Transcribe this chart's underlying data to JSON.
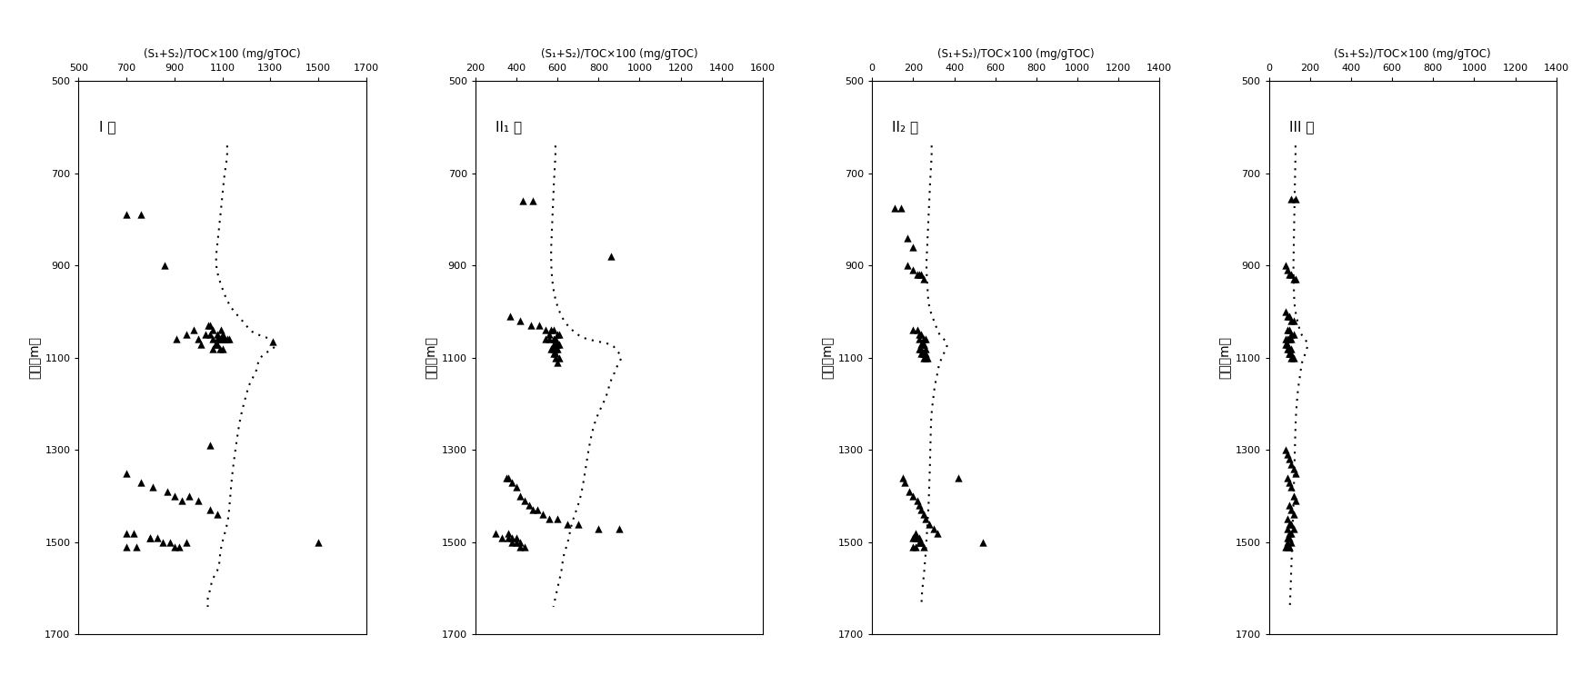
{
  "panels": [
    {
      "label": "I 型",
      "xlabel": "(S₁+S₂)/TOC×100 (mg/gTOC)",
      "xlim": [
        500,
        1700
      ],
      "xticks": [
        500,
        700,
        900,
        1100,
        1300,
        1500,
        1700
      ],
      "ylim": [
        1700,
        500
      ],
      "yticks": [
        500,
        700,
        900,
        1100,
        1300,
        1500,
        1700
      ],
      "scatter_x": [
        700,
        760,
        860,
        910,
        980,
        950,
        1000,
        1010,
        1030,
        1050,
        1060,
        1080,
        1090,
        1100,
        1110,
        1120,
        1130,
        1060,
        1070,
        1080,
        1090,
        1100,
        1060,
        1080,
        1095,
        1100,
        1040,
        1050,
        1310,
        700,
        760,
        810,
        870,
        900,
        930,
        960,
        1000,
        1050,
        1080,
        700,
        730,
        800,
        830,
        850,
        880,
        900,
        920,
        950,
        700,
        740,
        800,
        1050,
        1500
      ],
      "scatter_y": [
        790,
        790,
        900,
        1060,
        1040,
        1050,
        1060,
        1070,
        1050,
        1050,
        1060,
        1060,
        1060,
        1060,
        1060,
        1060,
        1060,
        1080,
        1070,
        1070,
        1080,
        1080,
        1040,
        1050,
        1040,
        1050,
        1030,
        1030,
        1065,
        1350,
        1370,
        1380,
        1390,
        1400,
        1410,
        1400,
        1410,
        1430,
        1440,
        1480,
        1480,
        1490,
        1490,
        1500,
        1500,
        1510,
        1510,
        1500,
        1510,
        1510,
        1490,
        1290,
        1500
      ],
      "curve_x": [
        1120,
        1120,
        1110,
        1100,
        1090,
        1080,
        1075,
        1100,
        1150,
        1200,
        1250,
        1300,
        1310,
        1320,
        1310,
        1280,
        1260,
        1250,
        1240,
        1220,
        1200,
        1180,
        1160,
        1140,
        1130,
        1120,
        1100,
        1090,
        1080,
        1060,
        1050,
        1040,
        1040
      ],
      "curve_y": [
        640,
        660,
        700,
        750,
        800,
        850,
        900,
        950,
        1000,
        1030,
        1050,
        1060,
        1065,
        1070,
        1080,
        1090,
        1100,
        1110,
        1130,
        1150,
        1180,
        1220,
        1280,
        1360,
        1420,
        1460,
        1500,
        1530,
        1560,
        1580,
        1600,
        1620,
        1640
      ]
    },
    {
      "label": "II₁ 型",
      "xlabel": "(S₁+S₂)/TOC×100 (mg/gTOC)",
      "xlim": [
        200,
        1600
      ],
      "xticks": [
        200,
        400,
        600,
        800,
        1000,
        1200,
        1400,
        1600
      ],
      "ylim": [
        1700,
        500
      ],
      "yticks": [
        500,
        700,
        900,
        1100,
        1300,
        1500,
        1700
      ],
      "scatter_x": [
        430,
        480,
        860,
        370,
        420,
        470,
        510,
        540,
        570,
        580,
        600,
        610,
        540,
        560,
        580,
        600,
        610,
        570,
        580,
        590,
        600,
        560,
        580,
        590,
        595,
        580,
        590,
        610,
        590,
        600,
        350,
        360,
        380,
        400,
        420,
        440,
        460,
        480,
        500,
        530,
        560,
        600,
        650,
        700,
        800,
        900,
        300,
        330,
        360,
        380,
        400,
        420,
        360,
        380,
        400,
        420,
        440
      ],
      "scatter_y": [
        760,
        760,
        880,
        1010,
        1020,
        1030,
        1030,
        1040,
        1040,
        1040,
        1050,
        1050,
        1060,
        1060,
        1070,
        1070,
        1070,
        1080,
        1080,
        1080,
        1080,
        1050,
        1060,
        1060,
        1070,
        1090,
        1090,
        1100,
        1100,
        1110,
        1360,
        1360,
        1370,
        1380,
        1400,
        1410,
        1420,
        1430,
        1430,
        1440,
        1450,
        1450,
        1460,
        1460,
        1470,
        1470,
        1480,
        1490,
        1490,
        1500,
        1500,
        1510,
        1480,
        1490,
        1490,
        1500,
        1510
      ],
      "curve_x": [
        590,
        590,
        585,
        580,
        575,
        570,
        570,
        580,
        610,
        650,
        700,
        750,
        800,
        850,
        880,
        900,
        910,
        900,
        880,
        860,
        840,
        800,
        760,
        730,
        700,
        670,
        650,
        630,
        620,
        610,
        600,
        590,
        580
      ],
      "curve_y": [
        640,
        660,
        700,
        750,
        800,
        850,
        900,
        950,
        1000,
        1030,
        1050,
        1060,
        1065,
        1070,
        1080,
        1090,
        1100,
        1110,
        1130,
        1150,
        1180,
        1220,
        1280,
        1360,
        1420,
        1460,
        1500,
        1530,
        1560,
        1580,
        1600,
        1620,
        1640
      ]
    },
    {
      "label": "II₂ 型",
      "xlabel": "(S₁+S₂)/TOC×100 (mg/gTOC)",
      "xlim": [
        0,
        1400
      ],
      "xticks": [
        0,
        200,
        400,
        600,
        800,
        1000,
        1200,
        1400
      ],
      "ylim": [
        1700,
        500
      ],
      "yticks": [
        500,
        700,
        900,
        1100,
        1300,
        1500,
        1700
      ],
      "scatter_x": [
        110,
        140,
        170,
        200,
        170,
        200,
        220,
        230,
        240,
        250,
        200,
        220,
        230,
        240,
        250,
        260,
        230,
        240,
        250,
        250,
        260,
        230,
        240,
        250,
        250,
        240,
        250,
        260,
        250,
        260,
        270,
        150,
        160,
        180,
        200,
        220,
        230,
        240,
        250,
        260,
        280,
        300,
        320,
        200,
        210,
        220,
        230,
        240,
        250,
        200,
        210,
        420,
        210,
        220,
        230,
        240,
        540
      ],
      "scatter_y": [
        775,
        775,
        840,
        860,
        900,
        910,
        920,
        920,
        920,
        930,
        1040,
        1040,
        1050,
        1050,
        1060,
        1060,
        1060,
        1070,
        1070,
        1070,
        1080,
        1080,
        1080,
        1090,
        1090,
        1090,
        1090,
        1090,
        1100,
        1100,
        1100,
        1360,
        1370,
        1390,
        1400,
        1410,
        1420,
        1430,
        1440,
        1450,
        1460,
        1470,
        1480,
        1490,
        1490,
        1490,
        1500,
        1500,
        1510,
        1510,
        1510,
        1360,
        1480,
        1490,
        1490,
        1500,
        1500
      ],
      "curve_x": [
        290,
        290,
        285,
        280,
        275,
        270,
        265,
        270,
        285,
        310,
        330,
        350,
        360,
        365,
        360,
        350,
        340,
        330,
        320,
        310,
        300,
        290,
        285,
        280,
        275,
        270,
        265,
        260,
        255,
        250,
        245,
        242,
        240
      ],
      "curve_y": [
        640,
        660,
        700,
        750,
        800,
        850,
        900,
        950,
        1000,
        1030,
        1050,
        1060,
        1065,
        1070,
        1080,
        1090,
        1100,
        1110,
        1130,
        1150,
        1180,
        1220,
        1280,
        1360,
        1420,
        1460,
        1500,
        1530,
        1560,
        1580,
        1600,
        1620,
        1640
      ]
    },
    {
      "label": "III 型",
      "xlabel": "(S₁+S₂)/TOC×100 (mg/gTOC)",
      "xlim": [
        0,
        1400
      ],
      "xticks": [
        0,
        200,
        400,
        600,
        800,
        1000,
        1200,
        1400
      ],
      "ylim": [
        1700,
        500
      ],
      "yticks": [
        500,
        700,
        900,
        1100,
        1300,
        1500,
        1700
      ],
      "scatter_x": [
        110,
        130,
        80,
        90,
        100,
        110,
        120,
        130,
        80,
        90,
        100,
        110,
        120,
        90,
        100,
        110,
        120,
        80,
        90,
        100,
        110,
        80,
        90,
        100,
        110,
        90,
        100,
        110,
        100,
        110,
        120,
        80,
        90,
        100,
        110,
        120,
        130,
        90,
        100,
        110,
        120,
        130,
        100,
        110,
        120,
        90,
        100,
        110,
        120,
        90,
        100,
        110,
        90,
        100,
        110,
        90,
        100,
        80,
        90,
        100
      ],
      "scatter_y": [
        755,
        755,
        900,
        910,
        920,
        920,
        930,
        930,
        1000,
        1010,
        1010,
        1020,
        1020,
        1040,
        1040,
        1050,
        1050,
        1060,
        1060,
        1060,
        1060,
        1070,
        1070,
        1080,
        1080,
        1080,
        1090,
        1090,
        1090,
        1100,
        1100,
        1300,
        1310,
        1320,
        1330,
        1340,
        1350,
        1360,
        1370,
        1380,
        1400,
        1410,
        1420,
        1430,
        1440,
        1450,
        1460,
        1460,
        1470,
        1470,
        1480,
        1480,
        1490,
        1490,
        1500,
        1500,
        1510,
        1510,
        1510,
        1510
      ],
      "curve_x": [
        130,
        130,
        128,
        126,
        124,
        122,
        120,
        122,
        130,
        145,
        160,
        175,
        185,
        190,
        185,
        178,
        170,
        162,
        155,
        148,
        140,
        133,
        128,
        123,
        120,
        117,
        114,
        112,
        110,
        108,
        106,
        104,
        103
      ],
      "curve_y": [
        640,
        660,
        700,
        750,
        800,
        850,
        900,
        950,
        1000,
        1030,
        1050,
        1060,
        1065,
        1070,
        1080,
        1090,
        1100,
        1110,
        1130,
        1150,
        1180,
        1220,
        1280,
        1360,
        1420,
        1460,
        1500,
        1530,
        1560,
        1580,
        1600,
        1620,
        1640
      ]
    }
  ],
  "ylabel": "深度（m）",
  "background_color": "#ffffff",
  "marker_color": "black",
  "curve_color": "black",
  "marker_size": 36,
  "curve_linewidth": 1.5,
  "curve_dotsize": 3.5
}
